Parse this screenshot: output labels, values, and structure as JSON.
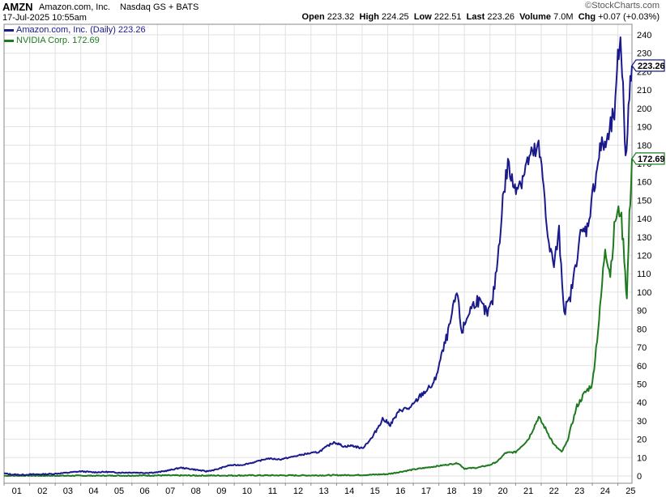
{
  "header": {
    "ticker": "AMZN",
    "company": "Amazon.com, Inc.",
    "exchange": "Nasdaq GS + BATS",
    "date": "17-Jul-2025 10:55am",
    "watermark": "©StockCharts.com",
    "stats": {
      "open_label": "Open",
      "open": "223.32",
      "high_label": "High",
      "high": "224.25",
      "low_label": "Low",
      "low": "222.51",
      "last_label": "Last",
      "last": "223.26",
      "volume_label": "Volume",
      "volume": "7.0M",
      "chg_label": "Chg",
      "chg": "+0.07 (+0.03%)"
    }
  },
  "legend": {
    "amzn": "Amazon.com, Inc. (Daily) 223.26",
    "nvda": "NVIDIA Corp. 172.69"
  },
  "colors": {
    "amzn": "#1a1a8c",
    "nvda": "#1e7a1e",
    "grid": "#e2e2e2",
    "axis": "#888888"
  },
  "chart_data": {
    "type": "line",
    "x_tick_labels": [
      "01",
      "02",
      "03",
      "04",
      "05",
      "06",
      "07",
      "08",
      "09",
      "10",
      "11",
      "12",
      "13",
      "14",
      "15",
      "16",
      "17",
      "18",
      "19",
      "20",
      "21",
      "22",
      "23",
      "24",
      "25"
    ],
    "y_tick_labels": [
      "0",
      "10",
      "20",
      "30",
      "40",
      "50",
      "60",
      "70",
      "80",
      "90",
      "100",
      "110",
      "120",
      "130",
      "140",
      "150",
      "160",
      "170",
      "180",
      "190",
      "200",
      "210",
      "220",
      "230",
      "240"
    ],
    "ylim": [
      0,
      240
    ],
    "xlim": [
      2001.0,
      2025.55
    ],
    "price_labels": {
      "amzn": "223.26",
      "nvda": "172.69"
    },
    "series": [
      {
        "name": "Amazon.com, Inc. (Daily) 223.26",
        "color": "#1a1a8c",
        "x": [
          2001.0,
          2001.3,
          2001.7,
          2002.0,
          2002.5,
          2003.0,
          2003.5,
          2004.0,
          2004.5,
          2005.0,
          2005.5,
          2006.0,
          2006.5,
          2007.0,
          2007.5,
          2007.9,
          2008.3,
          2008.9,
          2009.3,
          2009.8,
          2010.3,
          2010.8,
          2011.3,
          2011.8,
          2012.3,
          2012.8,
          2013.3,
          2013.9,
          2014.3,
          2014.6,
          2015.0,
          2015.4,
          2015.8,
          2016.1,
          2016.5,
          2016.9,
          2017.3,
          2017.8,
          2018.1,
          2018.4,
          2018.7,
          2018.9,
          2019.2,
          2019.5,
          2019.9,
          2020.1,
          2020.3,
          2020.5,
          2020.7,
          2020.9,
          2021.2,
          2021.5,
          2021.7,
          2021.9,
          2022.1,
          2022.3,
          2022.5,
          2022.7,
          2022.9,
          2023.1,
          2023.3,
          2023.5,
          2023.8,
          2024.0,
          2024.3,
          2024.6,
          2024.9,
          2025.0,
          2025.1,
          2025.2,
          2025.3,
          2025.45,
          2025.55
        ],
        "values": [
          1.4,
          0.8,
          0.6,
          0.8,
          0.9,
          1.2,
          1.8,
          2.5,
          2.0,
          2.2,
          1.8,
          1.9,
          1.7,
          2.0,
          3.2,
          4.5,
          3.8,
          2.5,
          3.5,
          5.8,
          6.0,
          7.5,
          9.5,
          9.0,
          10.5,
          12.0,
          13.0,
          18.5,
          16.0,
          16.5,
          15.0,
          21.0,
          31.0,
          28.0,
          36.0,
          37.0,
          44.0,
          50.0,
          65.0,
          80.0,
          100.0,
          78.0,
          90.0,
          96.0,
          88.0,
          95.0,
          118.0,
          150.0,
          170.0,
          158.0,
          160.0,
          172.0,
          175.0,
          178.0,
          158.0,
          125.0,
          115.0,
          132.0,
          90.0,
          95.0,
          110.0,
          130.0,
          135.0,
          152.0,
          178.0,
          182.0,
          200.0,
          225.0,
          240.0,
          210.0,
          175.0,
          205.0,
          223.26
        ]
      },
      {
        "name": "NVIDIA Corp. 172.69",
        "color": "#1e7a1e",
        "x": [
          2001.0,
          2003.0,
          2005.0,
          2007.0,
          2008.9,
          2011.0,
          2013.0,
          2015.0,
          2016.0,
          2017.0,
          2018.0,
          2018.75,
          2019.0,
          2019.5,
          2020.0,
          2020.3,
          2020.6,
          2021.0,
          2021.5,
          2021.9,
          2022.2,
          2022.5,
          2022.8,
          2023.0,
          2023.4,
          2023.7,
          2024.0,
          2024.3,
          2024.5,
          2024.7,
          2024.9,
          2025.1,
          2025.25,
          2025.35,
          2025.45,
          2025.55
        ],
        "values": [
          0.1,
          0.1,
          0.1,
          0.3,
          0.2,
          0.3,
          0.3,
          0.5,
          1.0,
          3.5,
          5.5,
          7.0,
          4.0,
          4.5,
          6.0,
          8.0,
          12.5,
          13.0,
          20.0,
          32.0,
          25.0,
          17.0,
          13.0,
          18.0,
          38.0,
          45.0,
          50.0,
          90.0,
          125.0,
          110.0,
          140.0,
          145.0,
          120.0,
          96.0,
          140.0,
          172.69
        ]
      }
    ]
  }
}
